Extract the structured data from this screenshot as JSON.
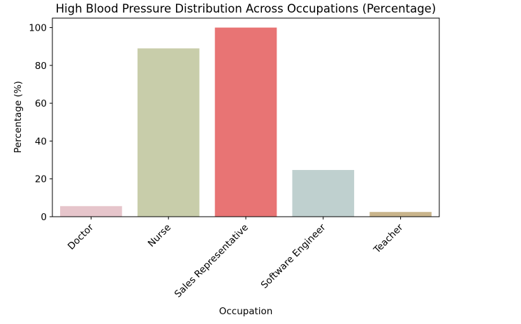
{
  "chart_data": {
    "type": "bar",
    "title": "High Blood Pressure Distribution Across Occupations (Percentage)",
    "xlabel": "Occupation",
    "ylabel": "Percentage (%)",
    "categories": [
      "Doctor",
      "Nurse",
      "Sales Representative",
      "Software Engineer",
      "Teacher"
    ],
    "values": [
      5.6,
      89.0,
      100.0,
      24.7,
      2.5
    ],
    "colors": [
      "#e6c5cb",
      "#c8cdaa",
      "#e87474",
      "#bfd0cf",
      "#c9b48b"
    ],
    "ylim": [
      0,
      105
    ],
    "yticks": [
      0,
      20,
      40,
      60,
      80,
      100
    ],
    "grid": false,
    "legend": "none"
  }
}
